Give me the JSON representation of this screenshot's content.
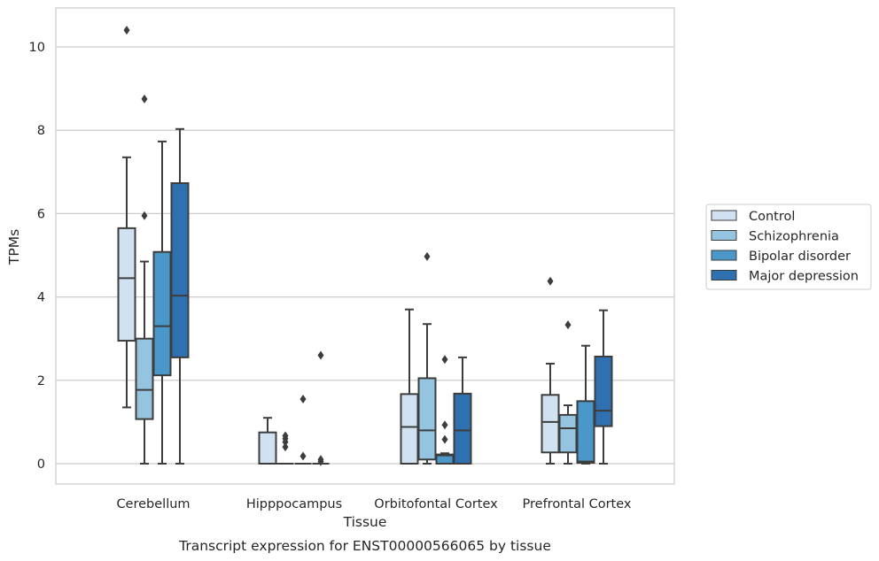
{
  "caption": "Transcript expression for ENST00000566065 by tissue",
  "chart_data": {
    "type": "box",
    "xlabel": "Tissue",
    "ylabel": "TPMs",
    "ylim": [
      -0.5,
      10.9
    ],
    "yticks": [
      0,
      2,
      4,
      6,
      8,
      10
    ],
    "grid": "horizontal",
    "legend_position": "right",
    "categories": [
      "Cerebellum",
      "Hipppocampus",
      "Orbitofontal Cortex",
      "Prefrontal Cortex"
    ],
    "series": [
      {
        "name": "Control",
        "color": "#d0e1f2",
        "boxes": [
          {
            "whislo": 1.35,
            "q1": 2.95,
            "med": 4.45,
            "q3": 5.65,
            "whishi": 7.35,
            "fliers": [
              10.4
            ]
          },
          {
            "whislo": 0.0,
            "q1": 0.0,
            "med": 0.0,
            "q3": 0.75,
            "whishi": 1.1,
            "fliers": []
          },
          {
            "whislo": 0.0,
            "q1": 0.0,
            "med": 0.88,
            "q3": 1.67,
            "whishi": 3.7,
            "fliers": []
          },
          {
            "whislo": 0.0,
            "q1": 0.27,
            "med": 1.0,
            "q3": 1.65,
            "whishi": 2.4,
            "fliers": [
              4.38
            ]
          }
        ]
      },
      {
        "name": "Schizophrenia",
        "color": "#94c4df",
        "boxes": [
          {
            "whislo": 0.0,
            "q1": 1.07,
            "med": 1.77,
            "q3": 3.0,
            "whishi": 4.85,
            "fliers": [
              5.95,
              8.75
            ]
          },
          {
            "whislo": 0.0,
            "q1": 0.0,
            "med": 0.0,
            "q3": 0.0,
            "whishi": 0.0,
            "fliers": [
              0.4,
              0.52,
              0.6,
              0.67
            ]
          },
          {
            "whislo": 0.0,
            "q1": 0.1,
            "med": 0.8,
            "q3": 2.05,
            "whishi": 3.35,
            "fliers": [
              4.97
            ]
          },
          {
            "whislo": 0.0,
            "q1": 0.27,
            "med": 0.85,
            "q3": 1.17,
            "whishi": 1.4,
            "fliers": [
              3.33
            ]
          }
        ]
      },
      {
        "name": "Bipolar disorder",
        "color": "#4a98c9",
        "boxes": [
          {
            "whislo": 0.0,
            "q1": 2.12,
            "med": 3.3,
            "q3": 5.08,
            "whishi": 7.73,
            "fliers": []
          },
          {
            "whislo": 0.0,
            "q1": 0.0,
            "med": 0.0,
            "q3": 0.0,
            "whishi": 0.0,
            "fliers": [
              0.18,
              1.55
            ]
          },
          {
            "whislo": 0.0,
            "q1": 0.0,
            "med": 0.2,
            "q3": 0.22,
            "whishi": 0.25,
            "fliers": [
              0.58,
              0.93,
              2.5
            ]
          },
          {
            "whislo": 0.0,
            "q1": 0.02,
            "med": 0.05,
            "q3": 1.5,
            "whishi": 2.83,
            "fliers": []
          }
        ]
      },
      {
        "name": "Major depression",
        "color": "#2e70b0",
        "boxes": [
          {
            "whislo": 0.0,
            "q1": 2.55,
            "med": 4.03,
            "q3": 6.73,
            "whishi": 8.03,
            "fliers": []
          },
          {
            "whislo": 0.0,
            "q1": 0.0,
            "med": 0.0,
            "q3": 0.0,
            "whishi": 0.0,
            "fliers": [
              0.05,
              0.1,
              2.6
            ]
          },
          {
            "whislo": 0.0,
            "q1": 0.0,
            "med": 0.8,
            "q3": 1.68,
            "whishi": 2.55,
            "fliers": []
          },
          {
            "whislo": 0.0,
            "q1": 0.9,
            "med": 1.27,
            "q3": 2.57,
            "whishi": 3.68,
            "fliers": []
          }
        ]
      }
    ]
  }
}
